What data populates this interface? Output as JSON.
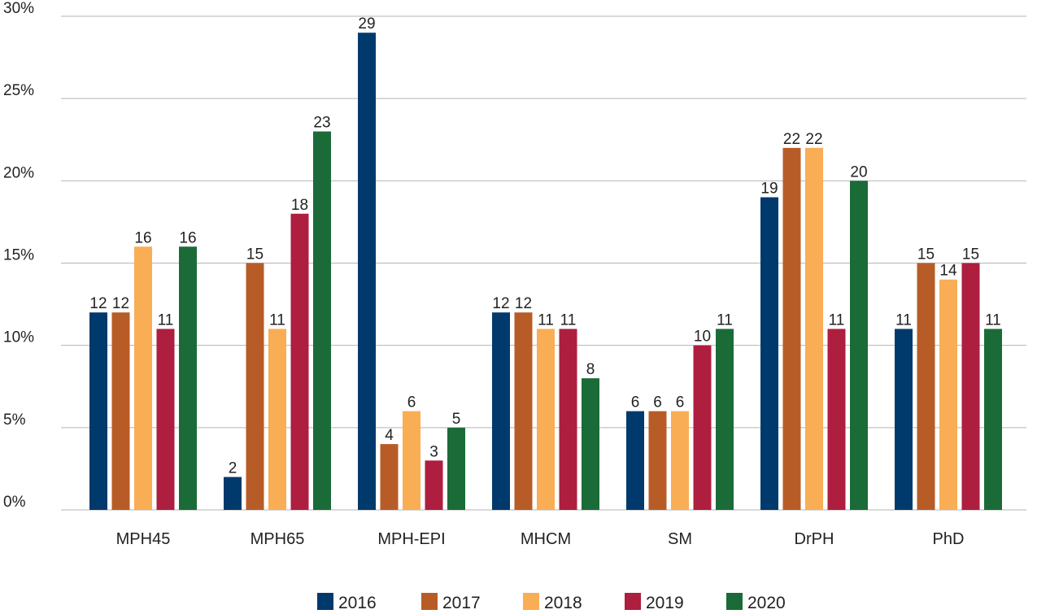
{
  "chart_data": {
    "type": "bar",
    "categories": [
      "MPH45",
      "MPH65",
      "MPH-EPI",
      "MHCM",
      "SM",
      "DrPH",
      "PhD"
    ],
    "series": [
      {
        "name": "2016",
        "color": "#003a6c",
        "values": [
          12,
          2,
          29,
          12,
          6,
          19,
          11
        ]
      },
      {
        "name": "2017",
        "color": "#b85c27",
        "values": [
          12,
          15,
          4,
          12,
          6,
          22,
          15
        ]
      },
      {
        "name": "2018",
        "color": "#f9ad55",
        "values": [
          16,
          11,
          6,
          11,
          6,
          22,
          14
        ]
      },
      {
        "name": "2019",
        "color": "#ae1e3f",
        "values": [
          11,
          18,
          3,
          11,
          10,
          11,
          15
        ]
      },
      {
        "name": "2020",
        "color": "#1b6b38",
        "values": [
          16,
          23,
          5,
          8,
          11,
          20,
          11
        ]
      }
    ],
    "ylim": [
      0,
      30
    ],
    "yticks": [
      0,
      5,
      10,
      15,
      20,
      25,
      30
    ],
    "ytick_labels": [
      "0%",
      "5%",
      "10%",
      "15%",
      "20%",
      "25%",
      "30%"
    ],
    "grid": true,
    "legend_position": "bottom-center",
    "title": "",
    "xlabel": "",
    "ylabel": ""
  }
}
